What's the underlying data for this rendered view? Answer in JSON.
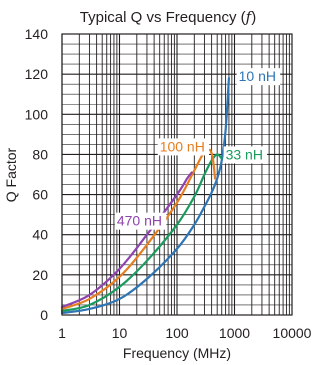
{
  "chart_data": {
    "type": "line",
    "title": "Typical Q vs Frequency (",
    "title_var": "f",
    "title_end": ")",
    "xlabel": "Frequency (MHz)",
    "ylabel": "Q Factor",
    "xscale": "log",
    "xlim": [
      1,
      10000
    ],
    "ylim": [
      0,
      140
    ],
    "x_ticks": [
      1,
      10,
      100,
      1000,
      10000
    ],
    "x_tick_labels": [
      "1",
      "10",
      "100",
      "1000",
      "10000"
    ],
    "y_ticks": [
      0,
      20,
      40,
      60,
      80,
      100,
      120,
      140
    ],
    "y_tick_labels": [
      "0",
      "20",
      "40",
      "60",
      "80",
      "100",
      "120",
      "140"
    ],
    "grid": true,
    "series": [
      {
        "name": "10 nH",
        "color": "#2e75b6",
        "points": [
          [
            1,
            1
          ],
          [
            3,
            3
          ],
          [
            10,
            8
          ],
          [
            30,
            18
          ],
          [
            100,
            33
          ],
          [
            200,
            45
          ],
          [
            300,
            54
          ],
          [
            400,
            61
          ],
          [
            500,
            68
          ],
          [
            600,
            77
          ],
          [
            700,
            92
          ],
          [
            800,
            118
          ]
        ]
      },
      {
        "name": "33 nH",
        "color": "#1a9a5e",
        "points": [
          [
            1,
            2
          ],
          [
            3,
            5
          ],
          [
            10,
            14
          ],
          [
            30,
            27
          ],
          [
            100,
            45
          ],
          [
            200,
            59
          ],
          [
            300,
            70
          ],
          [
            400,
            77
          ],
          [
            500,
            80
          ],
          [
            600,
            78
          ]
        ]
      },
      {
        "name": "100 nH",
        "color": "#e67e22",
        "points": [
          [
            1,
            3
          ],
          [
            3,
            8
          ],
          [
            10,
            19
          ],
          [
            30,
            35
          ],
          [
            100,
            56
          ],
          [
            200,
            72
          ],
          [
            280,
            80
          ],
          [
            330,
            82
          ],
          [
            380,
            82
          ],
          [
            420,
            78
          ],
          [
            460,
            68
          ]
        ]
      },
      {
        "name": "470 nH",
        "color": "#8e44ad",
        "points": [
          [
            1,
            4
          ],
          [
            3,
            10
          ],
          [
            10,
            23
          ],
          [
            30,
            40
          ],
          [
            100,
            60
          ],
          [
            150,
            68
          ],
          [
            180,
            71
          ]
        ]
      }
    ]
  }
}
